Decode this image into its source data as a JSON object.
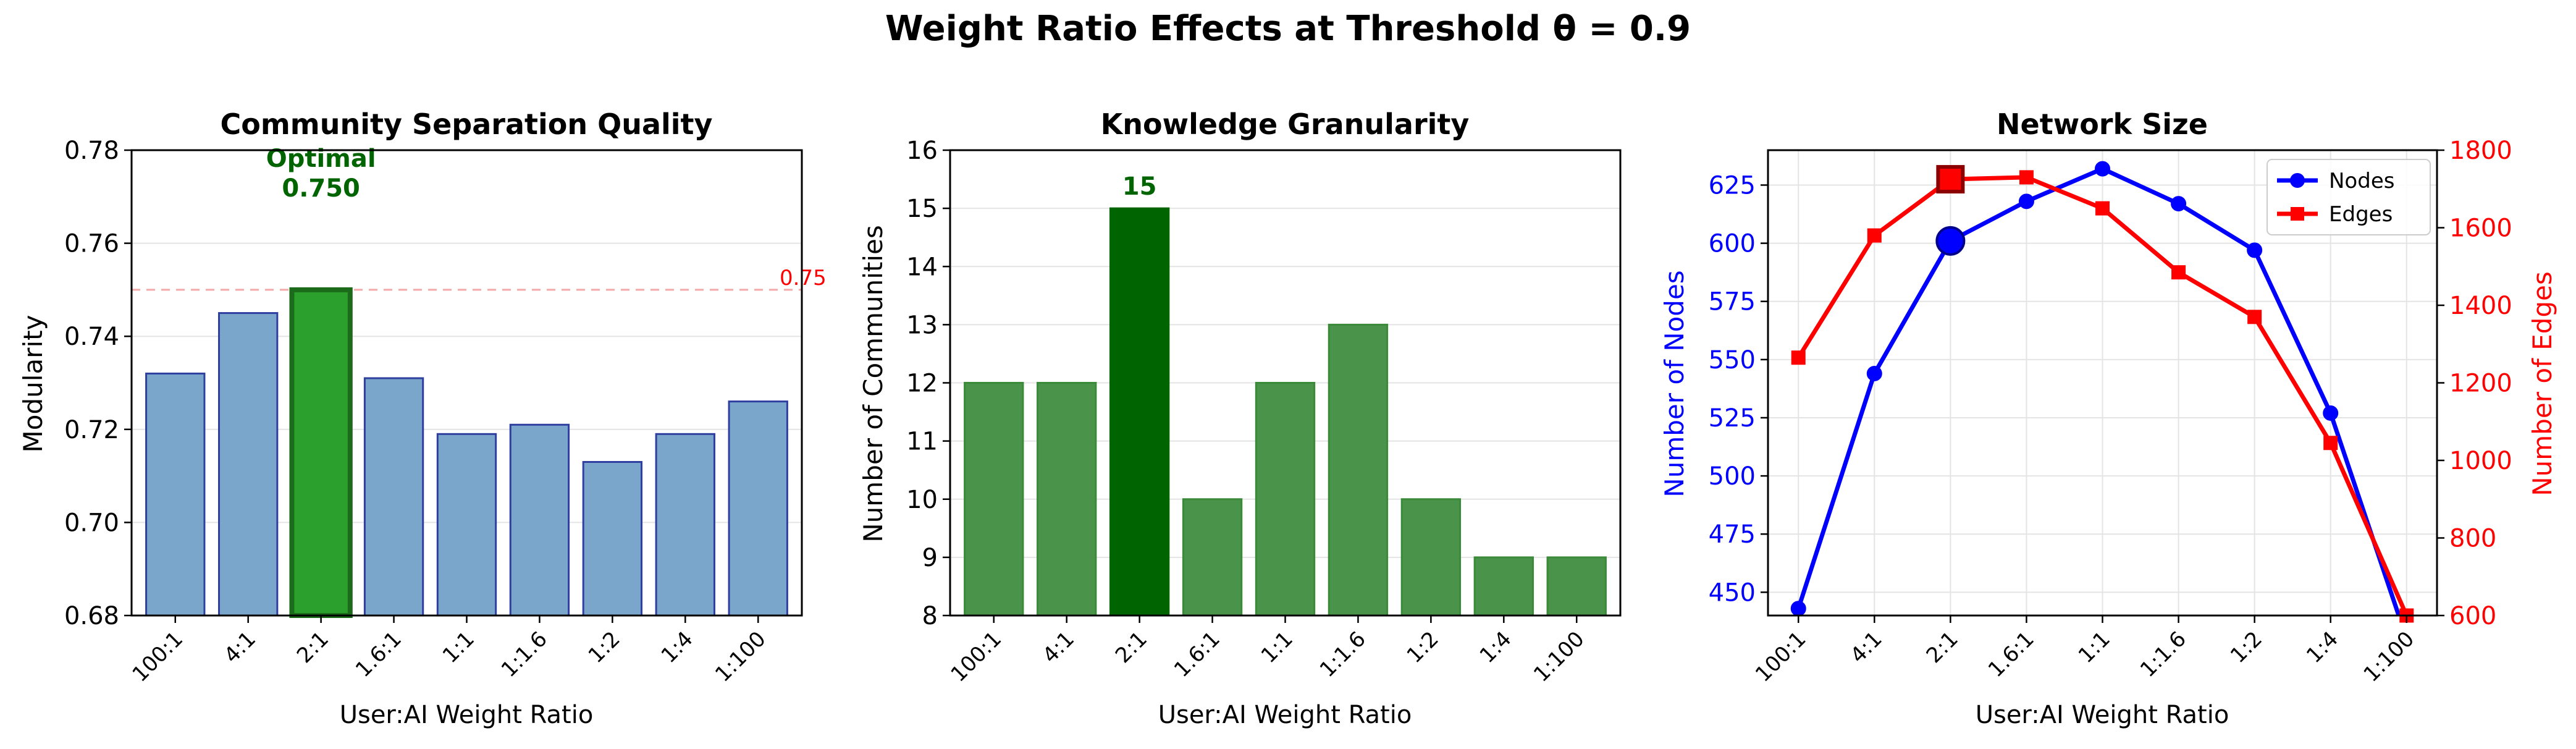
{
  "figure": {
    "title": "Weight Ratio Effects at Threshold θ = 0.9"
  },
  "colors": {
    "bar_default": "#7ba6cc",
    "bar_default_edge": "#2f3f9f",
    "bar_highlight": "#2ca02c",
    "bar_highlight_edge": "#1b6b1b",
    "green_bar": "#4a934a",
    "green_bar_highlight": "#006400",
    "annotation_green": "#006400",
    "reference_line": "#f4a9a9",
    "reference_text": "#ff0000",
    "nodes": "#0000ff",
    "edges": "#ff0000"
  },
  "chart_data": [
    {
      "type": "bar",
      "title": "Community Separation Quality",
      "xlabel": "User:AI Weight Ratio",
      "ylabel": "Modularity",
      "categories": [
        "100:1",
        "4:1",
        "2:1",
        "1.6:1",
        "1:1",
        "1:1.6",
        "1:2",
        "1:4",
        "1:100"
      ],
      "values": [
        0.732,
        0.745,
        0.75,
        0.731,
        0.719,
        0.721,
        0.713,
        0.719,
        0.726
      ],
      "ylim": [
        0.68,
        0.78
      ],
      "yticks": [
        "0.68",
        "0.70",
        "0.72",
        "0.74",
        "0.76",
        "0.78"
      ],
      "ytick_values": [
        0.68,
        0.7,
        0.72,
        0.74,
        0.76,
        0.78
      ],
      "highlight_index": 2,
      "reference_line": {
        "value": 0.75,
        "label": "0.75"
      },
      "annotation": {
        "line1": "Optimal",
        "line2": "0.750"
      },
      "grid": "y"
    },
    {
      "type": "bar",
      "title": "Knowledge Granularity",
      "xlabel": "User:AI Weight Ratio",
      "ylabel": "Number of Communities",
      "categories": [
        "100:1",
        "4:1",
        "2:1",
        "1.6:1",
        "1:1",
        "1:1.6",
        "1:2",
        "1:4",
        "1:100"
      ],
      "values": [
        12,
        12,
        15,
        10,
        12,
        13,
        10,
        9,
        9
      ],
      "ylim": [
        8,
        16
      ],
      "yticks": [
        "8",
        "9",
        "10",
        "11",
        "12",
        "13",
        "14",
        "15",
        "16"
      ],
      "ytick_values": [
        8,
        9,
        10,
        11,
        12,
        13,
        14,
        15,
        16
      ],
      "highlight_index": 2,
      "annotation": {
        "line1": "15"
      },
      "grid": "y"
    },
    {
      "type": "line",
      "title": "Network Size",
      "xlabel": "User:AI Weight Ratio",
      "ylabel": "Number of Nodes",
      "y2label": "Number of Edges",
      "categories": [
        "100:1",
        "4:1",
        "2:1",
        "1.6:1",
        "1:1",
        "1:1.6",
        "1:2",
        "1:4",
        "1:100"
      ],
      "series": [
        {
          "name": "Nodes",
          "axis": "left",
          "marker": "circle",
          "values": [
            443,
            544,
            601,
            618,
            632,
            617,
            597,
            527,
            430
          ]
        },
        {
          "name": "Edges",
          "axis": "right",
          "marker": "square",
          "values": [
            1265,
            1580,
            1725,
            1730,
            1650,
            1485,
            1370,
            1045,
            600
          ]
        }
      ],
      "ylim": [
        440,
        640
      ],
      "yticks": [
        "450",
        "475",
        "500",
        "525",
        "550",
        "575",
        "600",
        "625"
      ],
      "ytick_values": [
        450,
        475,
        500,
        525,
        550,
        575,
        600,
        625
      ],
      "y2lim": [
        600,
        1800
      ],
      "y2ticks": [
        "600",
        "800",
        "1000",
        "1200",
        "1400",
        "1600",
        "1800"
      ],
      "y2tick_values": [
        600,
        800,
        1000,
        1200,
        1400,
        1600,
        1800
      ],
      "highlight_index": 2,
      "legend": "top-right",
      "grid": "both"
    }
  ]
}
